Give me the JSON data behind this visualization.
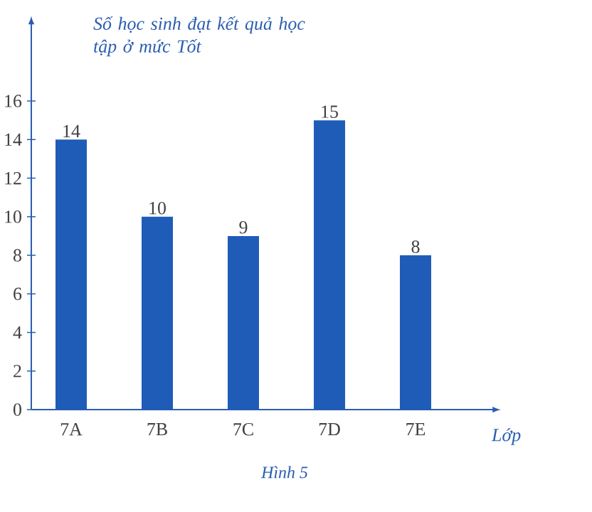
{
  "chart_data": {
    "type": "bar",
    "ylabel": "*Số học sinh đạt kết quả học tập ở mức Tốt*",
    "xlabel": "*Lớp*",
    "categories": [
      "7A",
      "7B",
      "7C",
      "7D",
      "7E"
    ],
    "values": [
      14,
      10,
      9,
      15,
      8
    ],
    "color": "#1f5cb8",
    "data_labels": true,
    "ylim": [
      0,
      20
    ],
    "yticks": [
      0,
      2,
      4,
      6,
      8,
      10,
      12,
      14,
      16
    ],
    "grid": false,
    "annotations": [
      "*Hình 5*"
    ]
  }
}
